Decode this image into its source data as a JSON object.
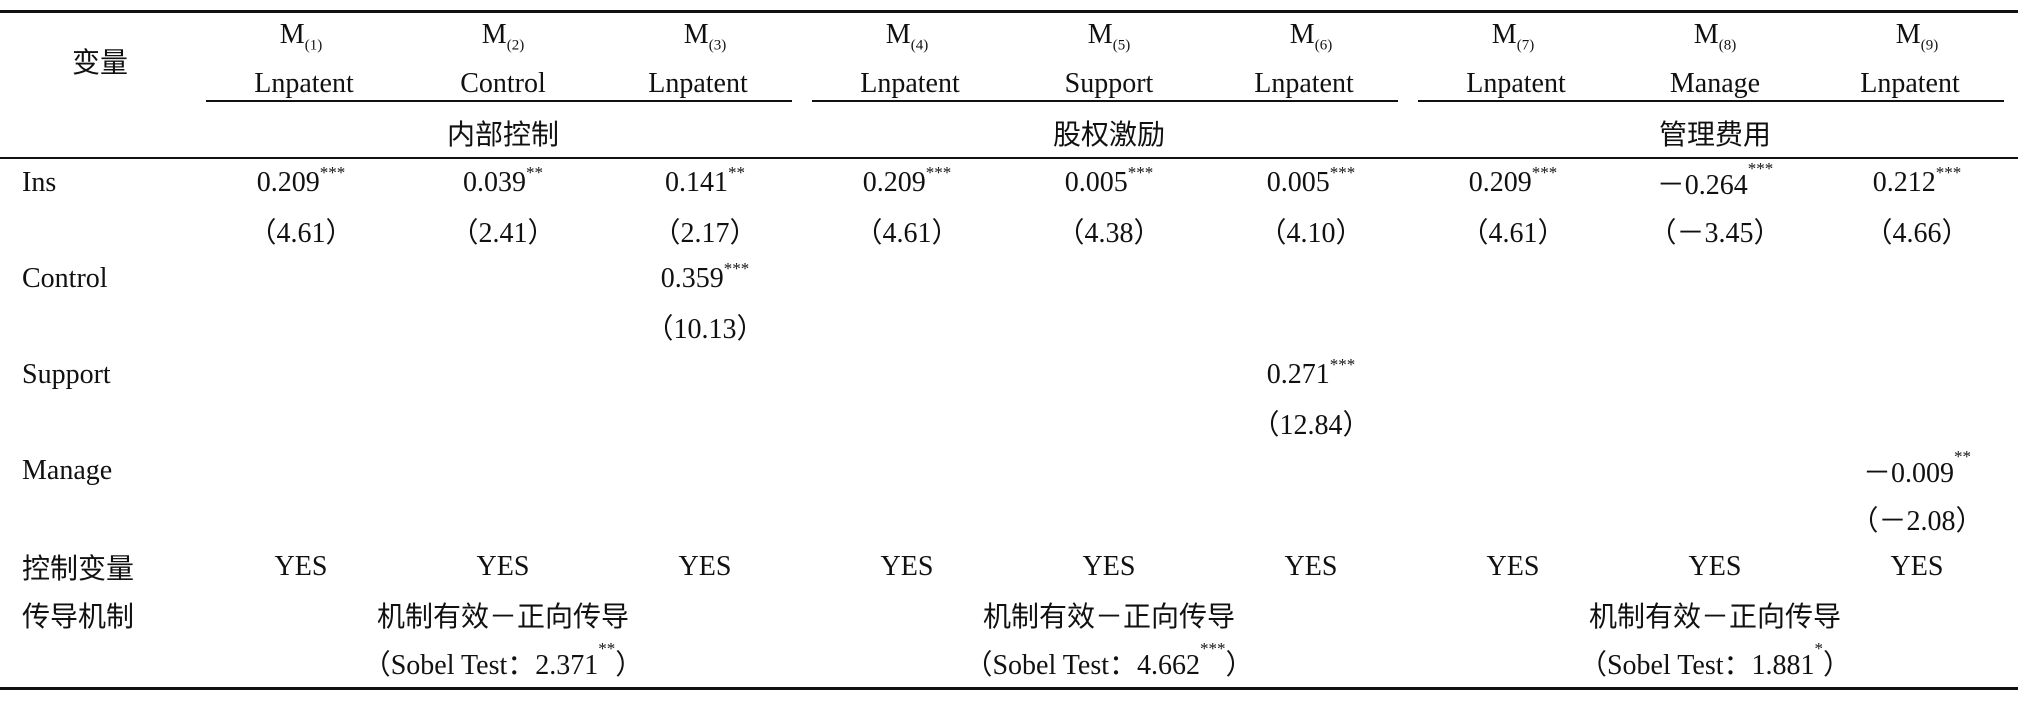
{
  "table": {
    "stub_header": "变量",
    "models": [
      {
        "name": "M",
        "sub": "(1)",
        "dep": "Lnpatent"
      },
      {
        "name": "M",
        "sub": "(2)",
        "dep": "Control"
      },
      {
        "name": "M",
        "sub": "(3)",
        "dep": "Lnpatent"
      },
      {
        "name": "M",
        "sub": "(4)",
        "dep": "Lnpatent"
      },
      {
        "name": "M",
        "sub": "(5)",
        "dep": "Support"
      },
      {
        "name": "M",
        "sub": "(6)",
        "dep": "Lnpatent"
      },
      {
        "name": "M",
        "sub": "(7)",
        "dep": "Lnpatent"
      },
      {
        "name": "M",
        "sub": "(8)",
        "dep": "Manage"
      },
      {
        "name": "M",
        "sub": "(9)",
        "dep": "Lnpatent"
      }
    ],
    "groups": [
      "内部控制",
      "股权激励",
      "管理费用"
    ],
    "rows": [
      {
        "label": "Ins",
        "cells": [
          {
            "coef": "0.209",
            "stars": "***",
            "t": "（4.61）"
          },
          {
            "coef": "0.039",
            "stars": "**",
            "t": "（2.41）"
          },
          {
            "coef": "0.141",
            "stars": "**",
            "t": "（2.17）"
          },
          {
            "coef": "0.209",
            "stars": "***",
            "t": "（4.61）"
          },
          {
            "coef": "0.005",
            "stars": "***",
            "t": "（4.38）"
          },
          {
            "coef": "0.005",
            "stars": "***",
            "t": "（4.10）"
          },
          {
            "coef": "0.209",
            "stars": "***",
            "t": "（4.61）"
          },
          {
            "coef": "－0.264",
            "stars": "***",
            "t": "（－3.45）"
          },
          {
            "coef": "0.212",
            "stars": "***",
            "t": "（4.66）"
          }
        ]
      },
      {
        "label": "Control",
        "cells": [
          null,
          null,
          {
            "coef": "0.359",
            "stars": "***",
            "t": "（10.13）"
          },
          null,
          null,
          null,
          null,
          null,
          null
        ]
      },
      {
        "label": "Support",
        "cells": [
          null,
          null,
          null,
          null,
          null,
          {
            "coef": "0.271",
            "stars": "***",
            "t": "（12.84）"
          },
          null,
          null,
          null
        ]
      },
      {
        "label": "Manage",
        "cells": [
          null,
          null,
          null,
          null,
          null,
          null,
          null,
          null,
          {
            "coef": "－0.009",
            "stars": "**",
            "t": "（－2.08）"
          }
        ]
      }
    ],
    "controls": {
      "label": "控制变量",
      "values": [
        "YES",
        "YES",
        "YES",
        "YES",
        "YES",
        "YES",
        "YES",
        "YES",
        "YES"
      ]
    },
    "mechanism": {
      "label": "传导机制",
      "groups": [
        {
          "text": "机制有效－正向传导",
          "sobel": "（Sobel Test：2.371",
          "stars": "**",
          "close": "）"
        },
        {
          "text": "机制有效－正向传导",
          "sobel": "（Sobel Test：4.662",
          "stars": "***",
          "close": "）"
        },
        {
          "text": "机制有效－正向传导",
          "sobel": "（Sobel Test：1.881",
          "stars": "*",
          "close": "）"
        }
      ]
    }
  }
}
